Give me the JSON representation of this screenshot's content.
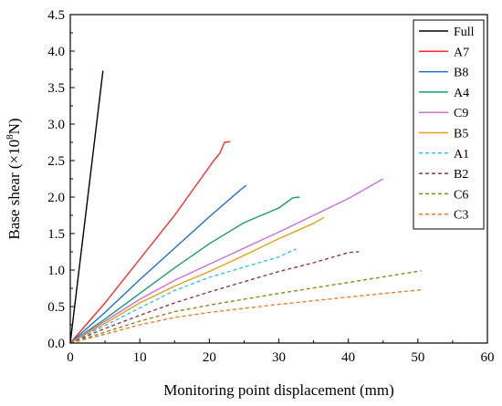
{
  "chart_data": {
    "type": "line",
    "title": "",
    "xlabel": "Monitoring point displacement (mm)",
    "ylabel_parts": {
      "prefix": "Base shear (×10",
      "exponent": "8",
      "suffix": "N)"
    },
    "xlim": [
      0,
      60
    ],
    "ylim": [
      0,
      4.5
    ],
    "xticks": [
      0,
      10,
      20,
      30,
      40,
      50,
      60
    ],
    "yticks": [
      0.0,
      0.5,
      1.0,
      1.5,
      2.0,
      2.5,
      3.0,
      3.5,
      4.0,
      4.5
    ],
    "xtick_labels": [
      "0",
      "10",
      "20",
      "30",
      "40",
      "50",
      "60"
    ],
    "ytick_labels": [
      "0.0",
      "0.5",
      "1.0",
      "1.5",
      "2.0",
      "2.5",
      "3.0",
      "3.5",
      "4.0",
      "4.5"
    ],
    "grid": false,
    "legend_position": "top-right",
    "series": [
      {
        "name": "Full",
        "color": "#000000",
        "dash": "solid",
        "points": [
          [
            0,
            0
          ],
          [
            0.5,
            0.4
          ],
          [
            4.7,
            3.73
          ]
        ]
      },
      {
        "name": "A7",
        "color": "#ff2a2a",
        "dash": "solid",
        "points": [
          [
            0,
            0
          ],
          [
            5,
            0.55
          ],
          [
            10,
            1.15
          ],
          [
            15,
            1.75
          ],
          [
            19,
            2.28
          ],
          [
            20.5,
            2.48
          ],
          [
            21.5,
            2.6
          ],
          [
            22.2,
            2.75
          ],
          [
            23,
            2.76
          ]
        ]
      },
      {
        "name": "B8",
        "color": "#1a6fd1",
        "dash": "solid",
        "points": [
          [
            0,
            0
          ],
          [
            5,
            0.42
          ],
          [
            10,
            0.87
          ],
          [
            15,
            1.3
          ],
          [
            20,
            1.73
          ],
          [
            24.5,
            2.1
          ],
          [
            25.3,
            2.16
          ]
        ]
      },
      {
        "name": "A4",
        "color": "#1a9e6e",
        "dash": "solid",
        "points": [
          [
            0,
            0
          ],
          [
            5,
            0.33
          ],
          [
            10,
            0.68
          ],
          [
            15,
            1.03
          ],
          [
            20,
            1.36
          ],
          [
            25,
            1.65
          ],
          [
            30,
            1.85
          ],
          [
            32,
            1.99
          ],
          [
            33,
            2.0
          ]
        ]
      },
      {
        "name": "C9",
        "color": "#c773d9",
        "dash": "solid",
        "points": [
          [
            0,
            0
          ],
          [
            5,
            0.3
          ],
          [
            10,
            0.6
          ],
          [
            15,
            0.86
          ],
          [
            20,
            1.08
          ],
          [
            30,
            1.52
          ],
          [
            40,
            1.98
          ],
          [
            45,
            2.25
          ]
        ]
      },
      {
        "name": "B5",
        "color": "#e5a016",
        "dash": "solid",
        "points": [
          [
            0,
            0
          ],
          [
            5,
            0.27
          ],
          [
            10,
            0.55
          ],
          [
            15,
            0.78
          ],
          [
            20,
            0.98
          ],
          [
            25,
            1.2
          ],
          [
            30,
            1.43
          ],
          [
            35,
            1.64
          ],
          [
            36.5,
            1.72
          ]
        ]
      },
      {
        "name": "A1",
        "color": "#33c3e8",
        "dash": "dashed",
        "points": [
          [
            0,
            0
          ],
          [
            5,
            0.24
          ],
          [
            10,
            0.48
          ],
          [
            15,
            0.72
          ],
          [
            20,
            0.9
          ],
          [
            25,
            1.04
          ],
          [
            30,
            1.18
          ],
          [
            32.5,
            1.29
          ]
        ]
      },
      {
        "name": "B2",
        "color": "#8b3a5a",
        "dash": "dashed",
        "points": [
          [
            0,
            0
          ],
          [
            5,
            0.2
          ],
          [
            10,
            0.38
          ],
          [
            15,
            0.55
          ],
          [
            20,
            0.7
          ],
          [
            25,
            0.84
          ],
          [
            30,
            0.98
          ],
          [
            35,
            1.1
          ],
          [
            40,
            1.24
          ],
          [
            41.5,
            1.25
          ]
        ]
      },
      {
        "name": "C6",
        "color": "#8b8a1a",
        "dash": "dashed",
        "points": [
          [
            0,
            0
          ],
          [
            5,
            0.15
          ],
          [
            10,
            0.3
          ],
          [
            15,
            0.43
          ],
          [
            20,
            0.52
          ],
          [
            30,
            0.68
          ],
          [
            40,
            0.83
          ],
          [
            50.5,
            0.99
          ]
        ]
      },
      {
        "name": "C3",
        "color": "#f07a2a",
        "dash": "dashed",
        "points": [
          [
            0,
            0
          ],
          [
            5,
            0.12
          ],
          [
            10,
            0.25
          ],
          [
            15,
            0.35
          ],
          [
            20,
            0.42
          ],
          [
            30,
            0.53
          ],
          [
            40,
            0.63
          ],
          [
            50.5,
            0.73
          ]
        ]
      }
    ]
  }
}
